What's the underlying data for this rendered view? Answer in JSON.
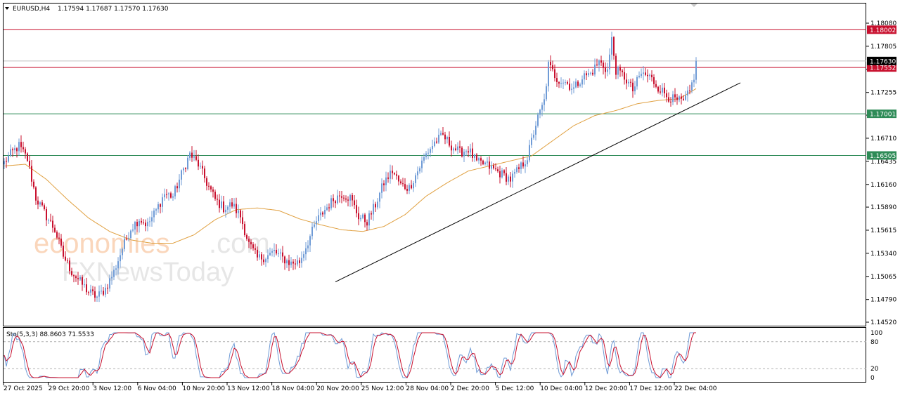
{
  "chart_data": {
    "type": "candlestick",
    "header": {
      "symbol": "EURUSD,H4",
      "ohlc": "1.17594 1.17687 1.17570 1.17630"
    },
    "y_ticks": [
      "1.18080",
      "1.17805",
      "1.17530",
      "1.17255",
      "1.16985",
      "1.16710",
      "1.16435",
      "1.16160",
      "1.15890",
      "1.15615",
      "1.15340",
      "1.15065",
      "1.14790",
      "1.14520"
    ],
    "ylim": [
      1.1452,
      1.1826
    ],
    "x_ticks": [
      "27 Oct 2025",
      "29 Oct 20:00",
      "3 Nov 12:00",
      "6 Nov 04:00",
      "10 Nov 20:00",
      "13 Nov 12:00",
      "18 Nov 04:00",
      "20 Nov 20:00",
      "25 Nov 12:00",
      "28 Nov 04:00",
      "2 Dec 20:00",
      "5 Dec 12:00",
      "10 Dec 04:00",
      "12 Dec 20:00",
      "17 Dec 12:00",
      "22 Dec 04:00"
    ],
    "levels": [
      {
        "value": 1.18002,
        "label": "1.18002",
        "color": "#c8102e"
      },
      {
        "value": 1.17552,
        "label": "1.17552",
        "color": "#c8102e"
      },
      {
        "value": 1.17001,
        "label": "1.17001",
        "color": "#2e8b57"
      },
      {
        "value": 1.16505,
        "label": "1.16505",
        "color": "#2e8b57"
      }
    ],
    "current_price": {
      "value": 1.1763,
      "label": "1.17630",
      "color": "#000000"
    },
    "colors": {
      "bull": "#6f9bd6",
      "bear": "#c8102e",
      "ma": "#e0a040",
      "trend": "#000000",
      "k_line": "#6f9bd6",
      "d_line": "#c8102e"
    },
    "anchors": [
      [
        0,
        1.1642
      ],
      [
        3,
        1.1652
      ],
      [
        7,
        1.1662
      ],
      [
        11,
        1.1646
      ],
      [
        15,
        1.16
      ],
      [
        20,
        1.1578
      ],
      [
        24,
        1.1562
      ],
      [
        28,
        1.1531
      ],
      [
        32,
        1.1512
      ],
      [
        36,
        1.15
      ],
      [
        40,
        1.1488
      ],
      [
        44,
        1.1482
      ],
      [
        48,
        1.1492
      ],
      [
        52,
        1.1512
      ],
      [
        56,
        1.154
      ],
      [
        60,
        1.1564
      ],
      [
        64,
        1.1575
      ],
      [
        68,
        1.1568
      ],
      [
        72,
        1.1585
      ],
      [
        76,
        1.1605
      ],
      [
        80,
        1.1602
      ],
      [
        84,
        1.1628
      ],
      [
        88,
        1.1652
      ],
      [
        92,
        1.164
      ],
      [
        96,
        1.1618
      ],
      [
        100,
        1.1598
      ],
      [
        104,
        1.1588
      ],
      [
        108,
        1.1592
      ],
      [
        112,
        1.1578
      ],
      [
        116,
        1.1545
      ],
      [
        120,
        1.1528
      ],
      [
        124,
        1.153
      ],
      [
        128,
        1.1536
      ],
      [
        132,
        1.1528
      ],
      [
        136,
        1.1522
      ],
      [
        140,
        1.1524
      ],
      [
        144,
        1.1548
      ],
      [
        148,
        1.1572
      ],
      [
        152,
        1.1586
      ],
      [
        156,
        1.1598
      ],
      [
        160,
        1.1605
      ],
      [
        164,
        1.16
      ],
      [
        168,
        1.1578
      ],
      [
        172,
        1.1572
      ],
      [
        176,
        1.1592
      ],
      [
        180,
        1.1618
      ],
      [
        184,
        1.1632
      ],
      [
        188,
        1.1615
      ],
      [
        192,
        1.1612
      ],
      [
        196,
        1.1632
      ],
      [
        200,
        1.1652
      ],
      [
        204,
        1.1666
      ],
      [
        208,
        1.1674
      ],
      [
        212,
        1.1662
      ],
      [
        216,
        1.1654
      ],
      [
        220,
        1.1658
      ],
      [
        224,
        1.1642
      ],
      [
        228,
        1.164
      ],
      [
        232,
        1.1634
      ],
      [
        236,
        1.1628
      ],
      [
        240,
        1.1622
      ],
      [
        244,
        1.1634
      ],
      [
        248,
        1.1648
      ],
      [
        252,
        1.1688
      ],
      [
        256,
        1.1715
      ],
      [
        258,
        1.1758
      ],
      [
        262,
        1.1742
      ],
      [
        266,
        1.1738
      ],
      [
        270,
        1.173
      ],
      [
        274,
        1.1744
      ],
      [
        278,
        1.1748
      ],
      [
        282,
        1.1762
      ],
      [
        286,
        1.1752
      ],
      [
        288,
        1.1788
      ],
      [
        290,
        1.1752
      ],
      [
        294,
        1.1744
      ],
      [
        298,
        1.1728
      ],
      [
        302,
        1.1748
      ],
      [
        306,
        1.1744
      ],
      [
        310,
        1.1732
      ],
      [
        314,
        1.1722
      ],
      [
        318,
        1.1716
      ],
      [
        322,
        1.1714
      ],
      [
        325,
        1.1726
      ],
      [
        327,
        1.1745
      ],
      [
        328,
        1.1763
      ]
    ],
    "ma_anchors": [
      [
        0,
        1.1638
      ],
      [
        10,
        1.164
      ],
      [
        20,
        1.1622
      ],
      [
        30,
        1.1598
      ],
      [
        40,
        1.1576
      ],
      [
        50,
        1.156
      ],
      [
        60,
        1.155
      ],
      [
        70,
        1.1546
      ],
      [
        80,
        1.1546
      ],
      [
        90,
        1.1556
      ],
      [
        100,
        1.1574
      ],
      [
        110,
        1.1586
      ],
      [
        120,
        1.1588
      ],
      [
        130,
        1.1585
      ],
      [
        140,
        1.1575
      ],
      [
        150,
        1.1568
      ],
      [
        160,
        1.1562
      ],
      [
        170,
        1.156
      ],
      [
        180,
        1.1566
      ],
      [
        190,
        1.158
      ],
      [
        200,
        1.1602
      ],
      [
        210,
        1.1618
      ],
      [
        220,
        1.1632
      ],
      [
        230,
        1.1638
      ],
      [
        240,
        1.1644
      ],
      [
        250,
        1.165
      ],
      [
        260,
        1.1668
      ],
      [
        270,
        1.1686
      ],
      [
        280,
        1.1698
      ],
      [
        290,
        1.1704
      ],
      [
        300,
        1.1712
      ],
      [
        310,
        1.1716
      ],
      [
        320,
        1.1718
      ],
      [
        328,
        1.173
      ]
    ],
    "trendline": [
      [
        157,
        1.15
      ],
      [
        349,
        1.1737
      ]
    ],
    "stochastic": {
      "label": "Sto(5,3,3) 88.8603 71.5533",
      "y_ticks": [
        "100",
        "80",
        "20",
        "0"
      ],
      "levels": [
        80,
        20
      ]
    }
  },
  "watermark": {
    "brand_top_orange": "economies",
    "brand_top_gray": ".com",
    "brand_bottom": "FXNewsToday"
  }
}
